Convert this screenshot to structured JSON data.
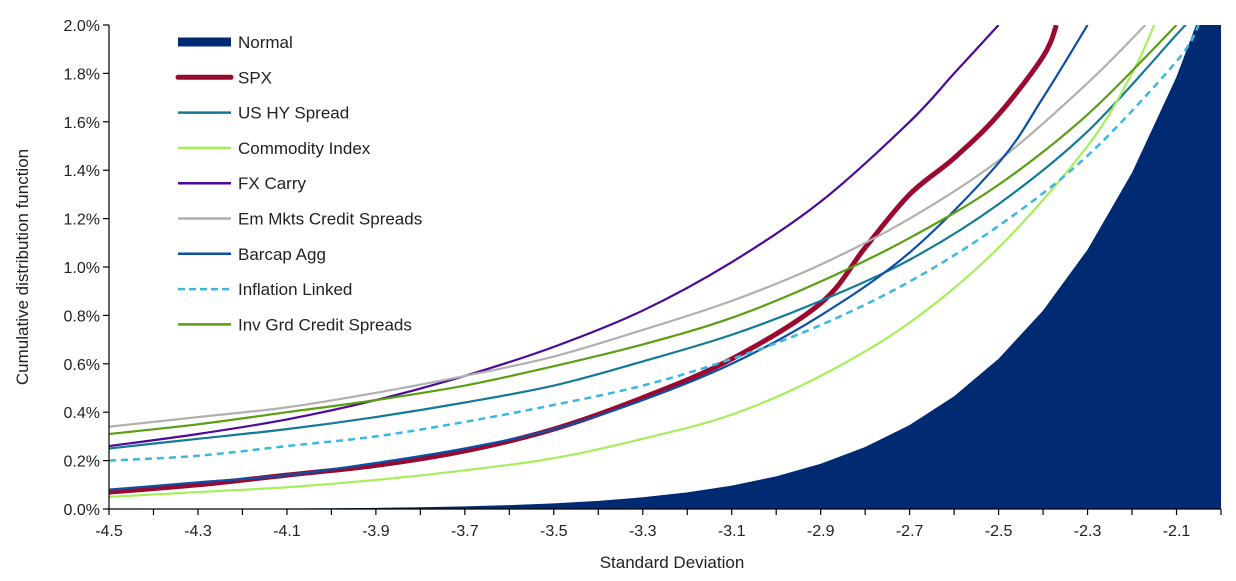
{
  "chart_data": {
    "type": "line",
    "title": "",
    "xlabel": "Standard Deviation",
    "ylabel": "Cumulative distribution function",
    "xlim": [
      -4.5,
      -2.0
    ],
    "ylim": [
      0,
      2.0
    ],
    "x_tick_labels": [
      "-4.5",
      "-4.3",
      "-4.1",
      "-3.9",
      "-3.7",
      "-3.5",
      "-3.3",
      "-3.1",
      "-2.9",
      "-2.7",
      "-2.5",
      "-2.3",
      "-2.1"
    ],
    "y_tick_labels": [
      "0.0%",
      "0.2%",
      "0.4%",
      "0.6%",
      "0.8%",
      "1.0%",
      "1.2%",
      "1.4%",
      "1.6%",
      "1.8%",
      "2.0%"
    ],
    "y_unit": "%",
    "grid": false,
    "legend_position": "top-left",
    "series": [
      {
        "name": "Normal",
        "style": "area",
        "color": "#002b72",
        "x": [
          -4.5,
          -4.4,
          -4.3,
          -4.2,
          -4.1,
          -4.0,
          -3.9,
          -3.8,
          -3.7,
          -3.6,
          -3.5,
          -3.4,
          -3.3,
          -3.2,
          -3.1,
          -3.0,
          -2.9,
          -2.8,
          -2.7,
          -2.6,
          -2.5,
          -2.4,
          -2.3,
          -2.2,
          -2.1,
          -2.0
        ],
        "y": [
          0.0003,
          0.0005,
          0.0009,
          0.0013,
          0.0021,
          0.0032,
          0.0048,
          0.0072,
          0.0108,
          0.0159,
          0.0233,
          0.0337,
          0.0483,
          0.0687,
          0.0968,
          0.135,
          0.187,
          0.256,
          0.347,
          0.466,
          0.621,
          0.82,
          1.072,
          1.39,
          1.786,
          2.275
        ]
      },
      {
        "name": "SPX",
        "style": "thick",
        "color": "#9b0a2e",
        "x": [
          -4.5,
          -4.3,
          -4.1,
          -3.9,
          -3.7,
          -3.5,
          -3.3,
          -3.1,
          -2.9,
          -2.8,
          -2.7,
          -2.6,
          -2.5,
          -2.4,
          -2.37
        ],
        "y": [
          0.07,
          0.1,
          0.14,
          0.18,
          0.24,
          0.33,
          0.46,
          0.62,
          0.85,
          1.08,
          1.3,
          1.45,
          1.63,
          1.87,
          2.0
        ]
      },
      {
        "name": "US HY Spread",
        "style": "solid",
        "color": "#137a97",
        "x": [
          -4.5,
          -4.3,
          -4.1,
          -3.9,
          -3.7,
          -3.5,
          -3.3,
          -3.1,
          -2.9,
          -2.7,
          -2.5,
          -2.3,
          -2.1,
          -2.08
        ],
        "y": [
          0.25,
          0.29,
          0.33,
          0.38,
          0.44,
          0.51,
          0.61,
          0.72,
          0.86,
          1.03,
          1.26,
          1.56,
          1.96,
          2.0
        ]
      },
      {
        "name": "Commodity Index",
        "style": "solid",
        "color": "#a6ef5a",
        "x": [
          -4.5,
          -4.3,
          -4.1,
          -3.9,
          -3.7,
          -3.5,
          -3.3,
          -3.1,
          -2.9,
          -2.7,
          -2.5,
          -2.3,
          -2.2,
          -2.15
        ],
        "y": [
          0.05,
          0.07,
          0.09,
          0.12,
          0.16,
          0.21,
          0.29,
          0.39,
          0.55,
          0.77,
          1.08,
          1.5,
          1.8,
          2.0
        ]
      },
      {
        "name": "FX Carry",
        "style": "solid",
        "color": "#4b0a99",
        "x": [
          -4.5,
          -4.3,
          -4.1,
          -3.9,
          -3.7,
          -3.5,
          -3.3,
          -3.1,
          -2.9,
          -2.7,
          -2.6,
          -2.5
        ],
        "y": [
          0.26,
          0.31,
          0.37,
          0.45,
          0.55,
          0.67,
          0.82,
          1.02,
          1.27,
          1.6,
          1.8,
          2.0
        ]
      },
      {
        "name": "Em Mkts Credit Spreads",
        "style": "solid",
        "color": "#b0b0b0",
        "x": [
          -4.5,
          -4.3,
          -4.1,
          -3.9,
          -3.7,
          -3.5,
          -3.3,
          -3.1,
          -2.9,
          -2.7,
          -2.5,
          -2.3,
          -2.17
        ],
        "y": [
          0.34,
          0.38,
          0.42,
          0.48,
          0.55,
          0.63,
          0.74,
          0.86,
          1.01,
          1.2,
          1.44,
          1.76,
          2.0
        ]
      },
      {
        "name": "Barcap Agg",
        "style": "solid",
        "color": "#0d4ea6",
        "x": [
          -4.5,
          -4.3,
          -4.1,
          -3.9,
          -3.7,
          -3.5,
          -3.3,
          -3.1,
          -2.9,
          -2.7,
          -2.5,
          -2.4,
          -2.3
        ],
        "y": [
          0.08,
          0.11,
          0.14,
          0.19,
          0.25,
          0.33,
          0.45,
          0.6,
          0.8,
          1.06,
          1.43,
          1.7,
          2.0
        ]
      },
      {
        "name": "Inflation Linked",
        "style": "dashed",
        "color": "#3ab8e0",
        "x": [
          -4.5,
          -4.3,
          -4.1,
          -3.9,
          -3.7,
          -3.5,
          -3.3,
          -3.1,
          -2.9,
          -2.7,
          -2.5,
          -2.3,
          -2.1,
          -2.05
        ],
        "y": [
          0.2,
          0.22,
          0.26,
          0.3,
          0.36,
          0.43,
          0.51,
          0.62,
          0.76,
          0.94,
          1.17,
          1.46,
          1.85,
          2.0
        ]
      },
      {
        "name": "Inv Grd Credit Spreads",
        "style": "solid",
        "color": "#5a9e12",
        "x": [
          -4.5,
          -4.3,
          -4.1,
          -3.9,
          -3.7,
          -3.5,
          -3.3,
          -3.1,
          -2.9,
          -2.7,
          -2.5,
          -2.3,
          -2.1
        ],
        "y": [
          0.31,
          0.35,
          0.4,
          0.45,
          0.51,
          0.59,
          0.68,
          0.79,
          0.94,
          1.12,
          1.34,
          1.63,
          2.0
        ]
      }
    ]
  }
}
